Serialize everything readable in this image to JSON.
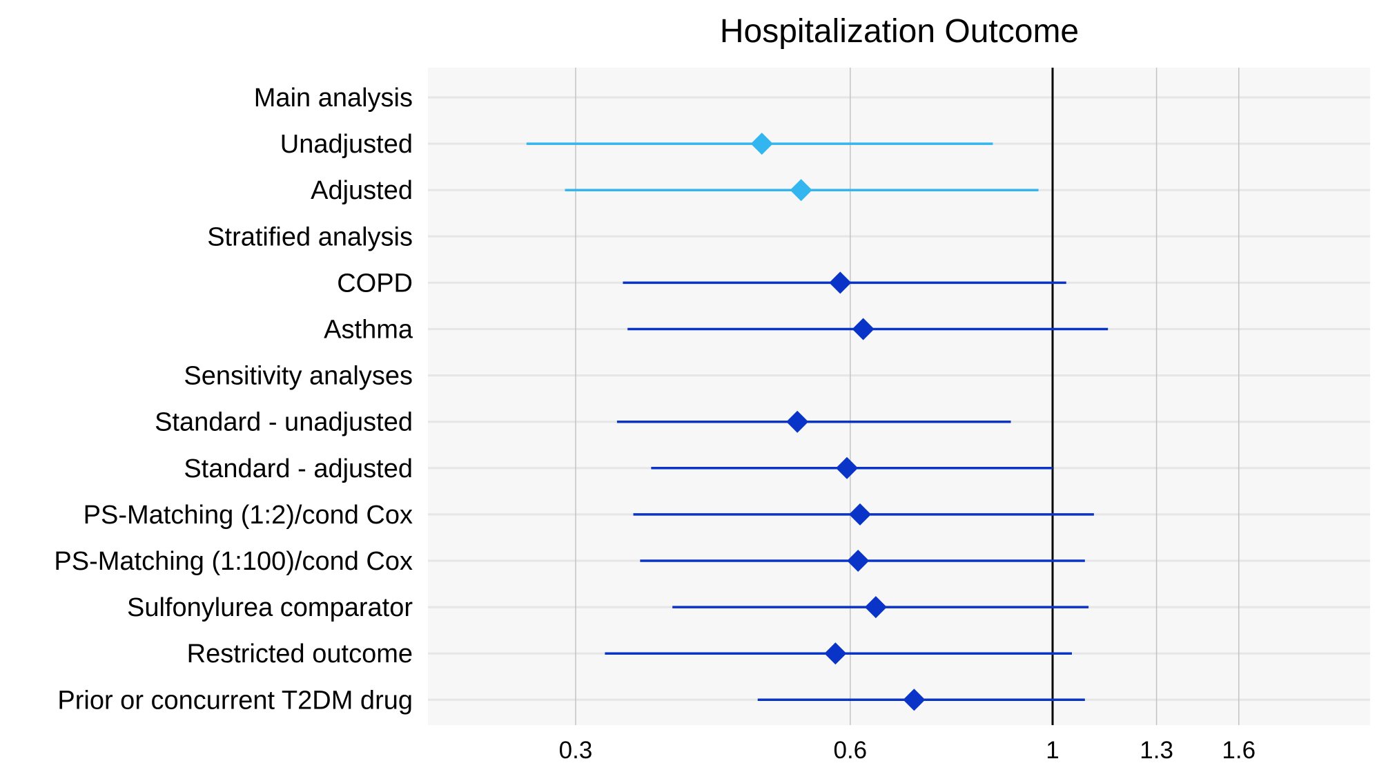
{
  "chart_data": {
    "type": "forest",
    "title": "Hospitalization Outcome",
    "xlabel": "",
    "ylabel": "",
    "x_scale": "log",
    "xlim": [
      0.23,
      2.1
    ],
    "xticks": [
      0.3,
      0.6,
      1,
      1.3,
      1.6
    ],
    "xtick_labels": [
      "0.3",
      "0.6",
      "1",
      "1.3",
      "1.6"
    ],
    "reference_line": 1,
    "grid": true,
    "rows": [
      {
        "label": "Main analysis",
        "type": "header"
      },
      {
        "label": "Unadjusted",
        "type": "estimate",
        "group": "main",
        "est": 0.48,
        "lo": 0.265,
        "hi": 0.86
      },
      {
        "label": "Adjusted",
        "type": "estimate",
        "group": "main",
        "est": 0.53,
        "lo": 0.292,
        "hi": 0.965
      },
      {
        "label": "Stratified analysis",
        "type": "header"
      },
      {
        "label": "COPD",
        "type": "estimate",
        "group": "other",
        "est": 0.585,
        "lo": 0.338,
        "hi": 1.035
      },
      {
        "label": "Asthma",
        "type": "estimate",
        "group": "other",
        "est": 0.62,
        "lo": 0.342,
        "hi": 1.15
      },
      {
        "label": "Sensitivity analyses",
        "type": "header"
      },
      {
        "label": "Standard - unadjusted",
        "type": "estimate",
        "group": "other",
        "est": 0.525,
        "lo": 0.333,
        "hi": 0.9
      },
      {
        "label": "Standard - adjusted",
        "type": "estimate",
        "group": "other",
        "est": 0.595,
        "lo": 0.363,
        "hi": 1.0
      },
      {
        "label": "PS-Matching (1:2)/cond Cox",
        "type": "estimate",
        "group": "other",
        "est": 0.615,
        "lo": 0.347,
        "hi": 1.11
      },
      {
        "label": "PS-Matching (1:100)/cond Cox",
        "type": "estimate",
        "group": "other",
        "est": 0.612,
        "lo": 0.353,
        "hi": 1.085
      },
      {
        "label": "Sulfonylurea comparator",
        "type": "estimate",
        "group": "other",
        "est": 0.64,
        "lo": 0.383,
        "hi": 1.095
      },
      {
        "label": "Restricted outcome",
        "type": "estimate",
        "group": "other",
        "est": 0.578,
        "lo": 0.323,
        "hi": 1.05
      },
      {
        "label": "Prior or concurrent T2DM drug",
        "type": "estimate",
        "group": "other",
        "est": 0.705,
        "lo": 0.475,
        "hi": 1.085
      }
    ],
    "colors": {
      "main": "#33b5ef",
      "other": "#0a33c8",
      "panel": "#f7f7f7",
      "row_grid": "#e6e6e6",
      "vertical_grid": "#c3c3c3",
      "reference": "#000000"
    }
  }
}
